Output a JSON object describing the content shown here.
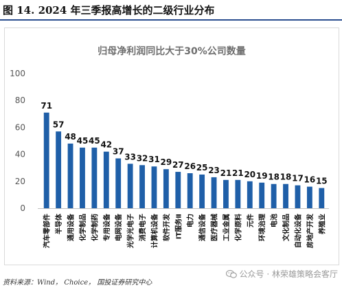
{
  "figure": {
    "label": "图 14.",
    "title": "2024 年三季报高增长的二级行业分布",
    "source": "资料来源：Wind， Choice， 国投证券研究中心"
  },
  "watermark": {
    "icon": "wechat-icon",
    "text": "公众号 · 林荣雄策略会客厅"
  },
  "chart_data": {
    "type": "bar",
    "title": "归母净利润同比大于30%公司数量",
    "xlabel": "",
    "ylabel": "",
    "ylim": [
      0,
      100
    ],
    "yticks": [
      0,
      20,
      40,
      60,
      80,
      100
    ],
    "grid": false,
    "bar_color": "#1f5fa8",
    "categories": [
      "汽车零部件",
      "半导体",
      "通用设备",
      "化学制品",
      "化学制药",
      "专用设备",
      "电网设备",
      "光学光电子",
      "消费电子",
      "计算机设备",
      "软件开发",
      "IT服务Ⅱ",
      "电力",
      "通信设备",
      "医疗器械",
      "工业金属",
      "化学原料",
      "元件",
      "环境治理",
      "电池",
      "文化制品",
      "自动化设备",
      "房地产开发",
      "养殖业"
    ],
    "values": [
      71,
      57,
      48,
      45,
      45,
      42,
      37,
      33,
      32,
      31,
      29,
      27,
      26,
      25,
      23,
      21,
      21,
      20,
      19,
      18,
      18,
      17,
      16,
      15
    ]
  }
}
